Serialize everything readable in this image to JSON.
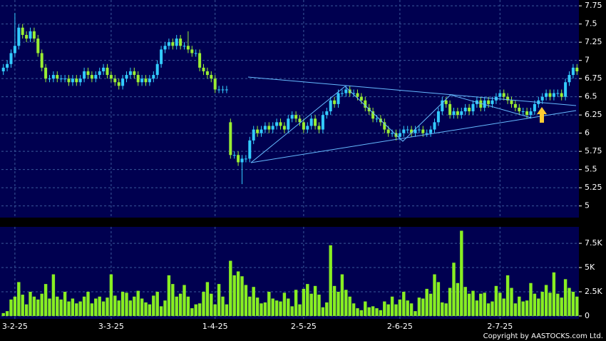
{
  "chart_data": [
    {
      "type": "candlestick",
      "up_color": "#33ccff",
      "down_color": "#99ee33",
      "grid": true,
      "ylim": [
        4.84,
        7.83
      ],
      "yticks": [
        5,
        5.25,
        5.5,
        5.75,
        6,
        6.25,
        6.5,
        6.75,
        7,
        7.25,
        7.5,
        7.75
      ],
      "open": [
        6.85,
        6.9,
        6.95,
        7.1,
        7.2,
        7.45,
        7.35,
        7.3,
        7.4,
        7.3,
        7.1,
        6.9,
        6.75,
        6.75,
        6.8,
        6.75,
        6.75,
        6.75,
        6.7,
        6.75,
        6.7,
        6.75,
        6.85,
        6.8,
        6.75,
        6.8,
        6.85,
        6.9,
        6.8,
        6.75,
        6.7,
        6.65,
        6.75,
        6.8,
        6.85,
        6.8,
        6.7,
        6.75,
        6.7,
        6.75,
        6.8,
        6.95,
        7.15,
        7.2,
        7.25,
        7.2,
        7.3,
        7.2,
        7.2,
        7.15,
        7.1,
        7.1,
        6.9,
        6.85,
        6.8,
        6.75,
        6.6,
        6.6,
        6.6,
        6.15,
        5.7,
        5.7,
        5.6,
        5.65,
        5.65,
        5.9,
        6.05,
        6.0,
        6.05,
        6.1,
        6.05,
        6.1,
        6.15,
        6.1,
        6.05,
        6.2,
        6.25,
        6.2,
        6.15,
        6.05,
        6.1,
        6.2,
        6.1,
        6.05,
        6.25,
        6.3,
        6.45,
        6.4,
        6.55,
        6.55,
        6.6,
        6.55,
        6.55,
        6.5,
        6.45,
        6.35,
        6.3,
        6.2,
        6.2,
        6.15,
        6.05,
        6.0,
        6.0,
        5.95,
        6.0,
        6.05,
        6.05,
        6.0,
        6.05,
        6.05,
        6.0,
        6.0,
        6.05,
        6.15,
        6.3,
        6.45,
        6.4,
        6.25,
        6.3,
        6.25,
        6.3,
        6.35,
        6.3,
        6.4,
        6.45,
        6.35,
        6.45,
        6.4,
        6.45,
        6.5,
        6.55,
        6.5,
        6.45,
        6.4,
        6.35,
        6.3,
        6.3,
        6.25,
        6.3,
        6.4,
        6.45,
        6.5,
        6.55,
        6.5,
        6.55,
        6.55,
        6.5,
        6.7,
        6.8,
        6.9
      ],
      "high": [
        6.95,
        7.0,
        7.15,
        7.65,
        7.5,
        7.5,
        7.4,
        7.45,
        7.45,
        7.35,
        7.15,
        6.95,
        6.8,
        6.85,
        6.85,
        6.8,
        6.8,
        6.8,
        6.8,
        6.8,
        6.8,
        6.9,
        6.9,
        6.85,
        6.85,
        6.9,
        6.95,
        6.95,
        6.85,
        6.8,
        6.75,
        6.8,
        6.85,
        6.9,
        6.9,
        6.85,
        6.8,
        6.8,
        6.8,
        6.85,
        7.0,
        7.2,
        7.25,
        7.3,
        7.3,
        7.35,
        7.35,
        7.25,
        7.4,
        7.2,
        7.15,
        7.15,
        6.95,
        6.9,
        6.85,
        6.8,
        6.65,
        6.65,
        6.65,
        6.2,
        5.75,
        5.75,
        5.7,
        5.7,
        5.95,
        6.1,
        6.1,
        6.1,
        6.15,
        6.15,
        6.15,
        6.2,
        6.2,
        6.15,
        6.25,
        6.3,
        6.3,
        6.25,
        6.2,
        6.15,
        6.25,
        6.25,
        6.15,
        6.3,
        6.35,
        6.5,
        6.5,
        6.6,
        6.6,
        6.65,
        6.65,
        6.6,
        6.6,
        6.55,
        6.5,
        6.4,
        6.35,
        6.25,
        6.25,
        6.2,
        6.1,
        6.05,
        6.05,
        6.05,
        6.1,
        6.1,
        6.1,
        6.1,
        6.1,
        6.1,
        6.05,
        6.1,
        6.2,
        6.35,
        6.5,
        6.5,
        6.45,
        6.35,
        6.35,
        6.35,
        6.4,
        6.4,
        6.45,
        6.5,
        6.5,
        6.5,
        6.5,
        6.5,
        6.55,
        6.6,
        6.6,
        6.55,
        6.5,
        6.45,
        6.4,
        6.35,
        6.35,
        6.35,
        6.45,
        6.5,
        6.55,
        6.6,
        6.6,
        6.6,
        6.6,
        6.6,
        6.75,
        6.85,
        6.95,
        6.95
      ],
      "low": [
        6.8,
        6.85,
        6.9,
        7.05,
        7.15,
        7.3,
        7.25,
        7.25,
        7.25,
        7.05,
        6.85,
        6.7,
        6.7,
        6.7,
        6.7,
        6.7,
        6.7,
        6.65,
        6.65,
        6.65,
        6.65,
        6.7,
        6.75,
        6.7,
        6.7,
        6.75,
        6.8,
        6.75,
        6.7,
        6.65,
        6.6,
        6.6,
        6.7,
        6.75,
        6.75,
        6.65,
        6.65,
        6.65,
        6.65,
        6.7,
        6.75,
        6.9,
        7.1,
        7.15,
        7.15,
        7.15,
        7.15,
        7.15,
        7.1,
        7.05,
        7.05,
        6.85,
        6.8,
        6.75,
        6.7,
        6.55,
        6.55,
        6.55,
        6.55,
        5.65,
        5.65,
        5.55,
        5.3,
        5.6,
        5.6,
        5.85,
        5.95,
        5.95,
        6.0,
        6.0,
        6.0,
        6.05,
        6.05,
        6.0,
        6.0,
        6.15,
        6.15,
        6.1,
        6.0,
        6.0,
        6.05,
        6.05,
        6.0,
        6.0,
        6.2,
        6.25,
        6.35,
        6.35,
        6.5,
        6.5,
        6.5,
        6.5,
        6.45,
        6.4,
        6.3,
        6.25,
        6.15,
        6.15,
        6.1,
        6.0,
        5.95,
        5.95,
        5.9,
        5.9,
        5.95,
        6.0,
        5.95,
        5.95,
        6.0,
        5.95,
        5.95,
        5.95,
        6.0,
        6.1,
        6.25,
        6.35,
        6.2,
        6.2,
        6.2,
        6.2,
        6.25,
        6.25,
        6.25,
        6.35,
        6.3,
        6.3,
        6.35,
        6.35,
        6.4,
        6.45,
        6.45,
        6.4,
        6.35,
        6.3,
        6.25,
        6.25,
        6.2,
        6.2,
        6.25,
        6.35,
        6.4,
        6.45,
        6.45,
        6.45,
        6.5,
        6.45,
        6.45,
        6.65,
        6.75,
        6.8
      ],
      "close": [
        6.9,
        6.95,
        7.1,
        7.2,
        7.45,
        7.35,
        7.3,
        7.4,
        7.3,
        7.1,
        6.9,
        6.75,
        6.75,
        6.8,
        6.75,
        6.75,
        6.75,
        6.7,
        6.75,
        6.7,
        6.75,
        6.85,
        6.8,
        6.75,
        6.8,
        6.85,
        6.9,
        6.8,
        6.75,
        6.7,
        6.65,
        6.75,
        6.8,
        6.85,
        6.8,
        6.7,
        6.75,
        6.7,
        6.75,
        6.8,
        6.95,
        7.15,
        7.2,
        7.25,
        7.2,
        7.3,
        7.2,
        7.2,
        7.15,
        7.1,
        7.1,
        6.9,
        6.85,
        6.8,
        6.75,
        6.6,
        6.6,
        6.6,
        6.6,
        5.7,
        5.7,
        5.6,
        5.65,
        5.65,
        5.9,
        6.05,
        6.0,
        6.05,
        6.1,
        6.05,
        6.1,
        6.15,
        6.1,
        6.05,
        6.2,
        6.25,
        6.2,
        6.15,
        6.05,
        6.1,
        6.2,
        6.1,
        6.05,
        6.25,
        6.3,
        6.45,
        6.4,
        6.55,
        6.55,
        6.6,
        6.55,
        6.55,
        6.5,
        6.45,
        6.35,
        6.3,
        6.2,
        6.2,
        6.15,
        6.05,
        6.0,
        6.0,
        5.95,
        6.0,
        6.05,
        6.05,
        6.0,
        6.05,
        6.05,
        6.0,
        6.0,
        6.05,
        6.15,
        6.3,
        6.45,
        6.4,
        6.25,
        6.3,
        6.25,
        6.3,
        6.35,
        6.3,
        6.4,
        6.45,
        6.35,
        6.45,
        6.4,
        6.45,
        6.5,
        6.55,
        6.5,
        6.45,
        6.4,
        6.35,
        6.3,
        6.3,
        6.25,
        6.3,
        6.4,
        6.45,
        6.5,
        6.55,
        6.5,
        6.55,
        6.55,
        6.5,
        6.7,
        6.8,
        6.9,
        6.85
      ]
    },
    {
      "type": "bar",
      "color": "#88ee22",
      "grid": true,
      "note": "Copyright by AASTOCKS.com Ltd.",
      "ylim": [
        -300,
        9200
      ],
      "yticks": [
        0,
        {
          "value": 2500,
          "label": "2.5K"
        },
        {
          "value": 5000,
          "label": "5K"
        },
        {
          "value": 7500,
          "label": "7.5K"
        }
      ],
      "categories": [
        null,
        null,
        null,
        "3-2-25",
        null,
        null,
        null,
        null,
        null,
        null,
        null,
        null,
        null,
        null,
        null,
        null,
        null,
        null,
        null,
        null,
        null,
        null,
        null,
        null,
        null,
        null,
        null,
        null,
        "3-3-25",
        null,
        null,
        null,
        null,
        null,
        null,
        null,
        null,
        null,
        null,
        null,
        null,
        null,
        null,
        null,
        null,
        null,
        null,
        null,
        null,
        null,
        null,
        null,
        null,
        null,
        null,
        "1-4-25",
        null,
        null,
        null,
        null,
        null,
        null,
        null,
        null,
        null,
        null,
        null,
        null,
        null,
        null,
        null,
        null,
        null,
        null,
        null,
        null,
        null,
        null,
        "2-5-25",
        null,
        null,
        null,
        null,
        null,
        null,
        null,
        null,
        null,
        null,
        null,
        null,
        null,
        null,
        null,
        null,
        null,
        null,
        null,
        null,
        null,
        null,
        null,
        null,
        "2-6-25",
        null,
        null,
        null,
        null,
        null,
        null,
        null,
        null,
        null,
        null,
        null,
        null,
        null,
        null,
        null,
        null,
        null,
        null,
        null,
        null,
        null,
        null,
        null,
        null,
        null,
        "2-7-25",
        null,
        null,
        null,
        null,
        null,
        null,
        null,
        null,
        null,
        null,
        null,
        null,
        null,
        null,
        null,
        null,
        null,
        null,
        null,
        null
      ],
      "values": [
        300,
        500,
        1700,
        2000,
        3500,
        2200,
        1200,
        2500,
        2000,
        1700,
        2300,
        3300,
        1800,
        4300,
        2000,
        1700,
        2500,
        1500,
        1800,
        1300,
        1500,
        2000,
        2500,
        1300,
        1800,
        2000,
        1500,
        1900,
        4300,
        2100,
        1600,
        2500,
        2400,
        1600,
        2000,
        2600,
        1800,
        1400,
        1200,
        2100,
        2500,
        1000,
        1600,
        4200,
        3300,
        2000,
        2300,
        3200,
        2000,
        800,
        1200,
        1300,
        2500,
        3500,
        2300,
        1200,
        3300,
        2000,
        1200,
        5700,
        4200,
        4600,
        4100,
        3200,
        2000,
        3000,
        1900,
        1300,
        1400,
        2500,
        1800,
        1600,
        1500,
        2400,
        1800,
        1000,
        2700,
        1200,
        2800,
        3300,
        2300,
        3100,
        2200,
        900,
        1400,
        7300,
        3100,
        2500,
        4300,
        2700,
        2000,
        1300,
        800,
        600,
        1500,
        900,
        1000,
        800,
        600,
        1500,
        1200,
        2000,
        1200,
        1700,
        2500,
        1600,
        1300,
        500,
        1900,
        1800,
        2800,
        2300,
        4300,
        3500,
        1400,
        1300,
        2900,
        5500,
        3400,
        8800,
        3000,
        2300,
        2600,
        1600,
        2300,
        2400,
        1300,
        1500,
        3100,
        2400,
        1800,
        4200,
        2900,
        1300,
        2000,
        1500,
        1600,
        3400,
        2300,
        1800,
        2500,
        3200,
        2400,
        4500,
        2300,
        1900,
        3800,
        2900,
        2500,
        2000
      ]
    }
  ]
}
